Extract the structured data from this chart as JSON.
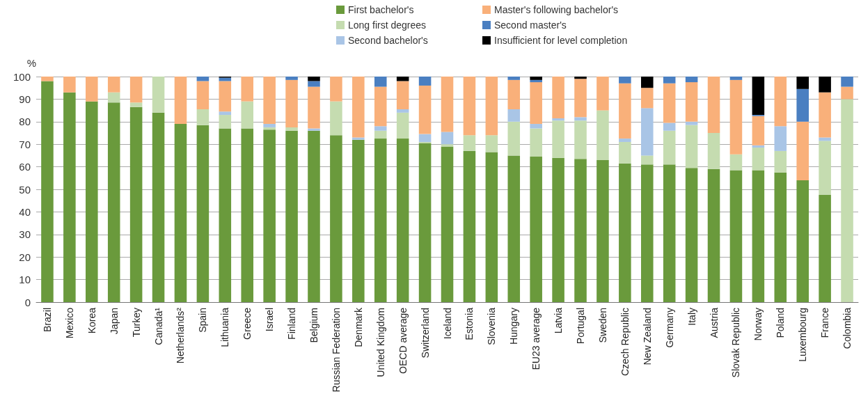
{
  "chart_data": {
    "type": "bar",
    "stacked": true,
    "ylabel": "%",
    "categories": [
      "Brazil",
      "Mexico",
      "Korea",
      "Japan",
      "Turkey",
      "Canada¹",
      "Netherlands²",
      "Spain",
      "Lithuania",
      "Greece",
      "Israel",
      "Finland",
      "Belgium",
      "Russian Federation",
      "Denmark",
      "United Kingdom",
      "OECD average",
      "Switzerland",
      "Iceland",
      "Estonia",
      "Slovenia",
      "Hungary",
      "EU23 average",
      "Latvia",
      "Portugal",
      "Sweden",
      "Czech Republic",
      "New Zealand",
      "Germany",
      "Italy",
      "Austria",
      "Slovak Republic",
      "Norway",
      "Poland",
      "Luxembourg",
      "France",
      "Colombia"
    ],
    "series": [
      {
        "name": "First bachelor's",
        "color": "#6a9a3c",
        "values": [
          98,
          93,
          89,
          88.5,
          86.5,
          84,
          79,
          78.5,
          77,
          77,
          76.5,
          76,
          76,
          74,
          72,
          72.5,
          72.5,
          70.5,
          69,
          67,
          66.5,
          65,
          64.5,
          64,
          63.5,
          63,
          61.5,
          61,
          61,
          59.5,
          59,
          58.5,
          58.5,
          57.5,
          54,
          47.5,
          0
        ]
      },
      {
        "name": "Long first degrees",
        "color": "#c5dcb0",
        "values": [
          0,
          0,
          0,
          4.5,
          2,
          16,
          0,
          7,
          6,
          12,
          1,
          1.5,
          null,
          15,
          0,
          3.5,
          11.5,
          0.5,
          1,
          7,
          7.5,
          15,
          12.5,
          16.5,
          17,
          22,
          9.5,
          4,
          15,
          19,
          16,
          7,
          10,
          9.5,
          0,
          24,
          90
        ]
      },
      {
        "name": "Second bachelor's",
        "color": "#a9c5e6",
        "values": [
          0,
          0,
          0,
          0,
          0,
          0,
          0,
          0,
          1.5,
          0,
          1.5,
          0,
          1,
          0,
          1,
          2,
          1.5,
          3.5,
          5.5,
          0,
          0,
          5.5,
          2,
          1,
          1.5,
          0,
          1.5,
          21,
          3.5,
          1.5,
          0,
          null,
          1,
          11,
          0,
          1.5,
          0
        ]
      },
      {
        "name": "Master's following bachelor's",
        "color": "#f9b07a",
        "values": [
          2,
          7,
          11,
          7,
          11.5,
          0,
          21,
          12.5,
          13.5,
          11,
          21,
          21,
          18.5,
          11,
          27,
          17.5,
          12.5,
          21.5,
          24.5,
          26,
          26,
          13,
          18.5,
          18.5,
          17,
          15,
          24.5,
          9,
          17.5,
          17.5,
          25,
          33,
          13,
          22,
          26,
          20,
          5.5
        ]
      },
      {
        "name": "Second master's",
        "color": "#4a7fc1",
        "values": [
          0,
          0,
          0,
          0,
          0,
          0,
          0,
          2,
          1.5,
          0,
          0,
          1.5,
          2.5,
          0,
          0,
          4.5,
          0,
          4,
          0,
          0,
          0,
          1.5,
          1,
          0,
          0,
          0,
          3,
          0,
          3,
          2.5,
          0,
          1.5,
          0.5,
          0,
          14.5,
          0,
          4.5
        ]
      },
      {
        "name": "Insufficient for level completion",
        "color": "#000000",
        "values": [
          0,
          0,
          0,
          0,
          0,
          0,
          0,
          0,
          0.5,
          0,
          0,
          0,
          2,
          0,
          0,
          0,
          2,
          0,
          0,
          0,
          0,
          0,
          1.5,
          0,
          1,
          0,
          0,
          5,
          0,
          0,
          0,
          0,
          17,
          0,
          5.5,
          7,
          0
        ]
      }
    ],
    "ylim": [
      0,
      100
    ],
    "yticks": [
      0,
      10,
      20,
      30,
      40,
      50,
      60,
      70,
      80,
      90,
      100
    ],
    "grid": "y",
    "legend": "top"
  }
}
